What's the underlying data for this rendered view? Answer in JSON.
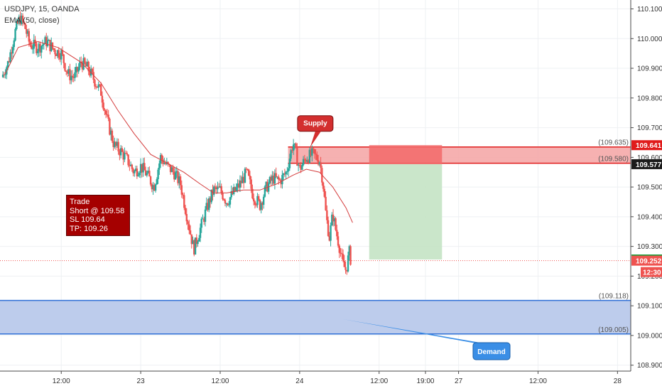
{
  "header": {
    "symbol_line": "USDJPY, 15, OANDA",
    "indicator_line": "EMA (50, close)"
  },
  "trade_box": {
    "title": "Trade",
    "entry": "Short @ 109.58",
    "stop": "SL 109.64",
    "target": "TP: 109.26"
  },
  "callouts": {
    "supply": "Supply",
    "demand": "Demand"
  },
  "colors": {
    "up": "#26a69a",
    "down": "#ef5350",
    "ema": "#d43c3c",
    "supply_fill": "#f4a3a3",
    "supply_border": "#e01b1b",
    "demand_fill": "#b9c9eb",
    "demand_border": "#2f6fd6",
    "target_fill": "#c4e3c4",
    "stop_fill": "#f26a6a"
  },
  "chart_data": {
    "type": "candlestick",
    "symbol": "USDJPY",
    "timeframe": "15",
    "ylim": [
      108.88,
      110.13
    ],
    "y_ticks": [
      "110.100",
      "110.000",
      "109.900",
      "109.800",
      "109.700",
      "109.600",
      "109.500",
      "109.400",
      "109.300",
      "109.200",
      "109.100",
      "109.000",
      "108.900"
    ],
    "x_ticks": [
      {
        "label": "12:00",
        "t": 72
      },
      {
        "label": "23",
        "t": 120
      },
      {
        "label": "12:00",
        "t": 168
      },
      {
        "label": "24",
        "t": 216
      },
      {
        "label": "12:00",
        "t": 264
      },
      {
        "label": "19:00",
        "t": 292
      },
      {
        "label": "27",
        "t": 312
      },
      {
        "label": "12:00",
        "t": 360
      },
      {
        "label": "28",
        "t": 408
      }
    ],
    "time_range_hours": [
      35,
      416
    ],
    "price_path": [
      [
        36,
        109.87
      ],
      [
        40,
        109.92
      ],
      [
        44,
        110.02
      ],
      [
        47,
        110.07
      ],
      [
        50,
        110.04
      ],
      [
        53,
        109.98
      ],
      [
        58,
        109.97
      ],
      [
        63,
        109.99
      ],
      [
        68,
        109.96
      ],
      [
        72,
        109.95
      ],
      [
        76,
        109.88
      ],
      [
        80,
        109.87
      ],
      [
        84,
        109.92
      ],
      [
        88,
        109.9
      ],
      [
        92,
        109.86
      ],
      [
        96,
        109.82
      ],
      [
        100,
        109.72
      ],
      [
        104,
        109.64
      ],
      [
        108,
        109.62
      ],
      [
        112,
        109.59
      ],
      [
        116,
        109.55
      ],
      [
        120,
        109.57
      ],
      [
        124,
        109.54
      ],
      [
        128,
        109.5
      ],
      [
        132,
        109.6
      ],
      [
        136,
        109.57
      ],
      [
        140,
        109.55
      ],
      [
        144,
        109.51
      ],
      [
        148,
        109.4
      ],
      [
        152,
        109.29
      ],
      [
        156,
        109.36
      ],
      [
        160,
        109.43
      ],
      [
        164,
        109.49
      ],
      [
        168,
        109.49
      ],
      [
        172,
        109.45
      ],
      [
        176,
        109.48
      ],
      [
        180,
        109.51
      ],
      [
        184,
        109.55
      ],
      [
        188,
        109.47
      ],
      [
        192,
        109.44
      ],
      [
        196,
        109.5
      ],
      [
        200,
        109.53
      ],
      [
        204,
        109.52
      ],
      [
        208,
        109.55
      ],
      [
        212,
        109.65
      ],
      [
        216,
        109.56
      ],
      [
        220,
        109.6
      ],
      [
        224,
        109.61
      ],
      [
        228,
        109.59
      ],
      [
        230,
        109.52
      ],
      [
        232,
        109.4
      ],
      [
        234,
        109.33
      ],
      [
        236,
        109.41
      ],
      [
        238,
        109.35
      ],
      [
        240,
        109.3
      ],
      [
        242,
        109.24
      ],
      [
        244,
        109.22
      ],
      [
        246,
        109.28
      ],
      [
        247,
        109.25
      ]
    ],
    "ema_path": [
      [
        38,
        109.88
      ],
      [
        46,
        109.97
      ],
      [
        58,
        109.99
      ],
      [
        70,
        109.97
      ],
      [
        84,
        109.92
      ],
      [
        96,
        109.85
      ],
      [
        106,
        109.76
      ],
      [
        116,
        109.68
      ],
      [
        126,
        109.61
      ],
      [
        136,
        109.58
      ],
      [
        146,
        109.55
      ],
      [
        156,
        109.51
      ],
      [
        164,
        109.48
      ],
      [
        172,
        109.48
      ],
      [
        182,
        109.49
      ],
      [
        192,
        109.49
      ],
      [
        202,
        109.51
      ],
      [
        212,
        109.54
      ],
      [
        220,
        109.56
      ],
      [
        228,
        109.55
      ],
      [
        236,
        109.5
      ],
      [
        244,
        109.43
      ],
      [
        248,
        109.38
      ]
    ],
    "supply_zone": {
      "low": 109.58,
      "high": 109.635,
      "low_label": "(109.580)",
      "high_label": "(109.635)",
      "t_from": 209
    },
    "demand_zone": {
      "low": 109.005,
      "high": 109.118,
      "low_label": "(109.005)",
      "high_label": "(109.118)"
    },
    "position": {
      "t_from": 258,
      "t_to": 302,
      "entry": 109.577,
      "stop": 109.641,
      "target": 109.256
    },
    "price_tags": [
      {
        "label": "109.641",
        "value": 109.641,
        "color": "#e01b1b"
      },
      {
        "label": "109.577",
        "value": 109.577,
        "color": "#1b1b1b"
      },
      {
        "label": "109.256",
        "value": 109.256,
        "color": "#1e9e3a"
      },
      {
        "label": "109.252",
        "value": 109.252,
        "color": "#ef5350"
      }
    ],
    "countdown_label": "12:30",
    "last_price": 109.252
  }
}
